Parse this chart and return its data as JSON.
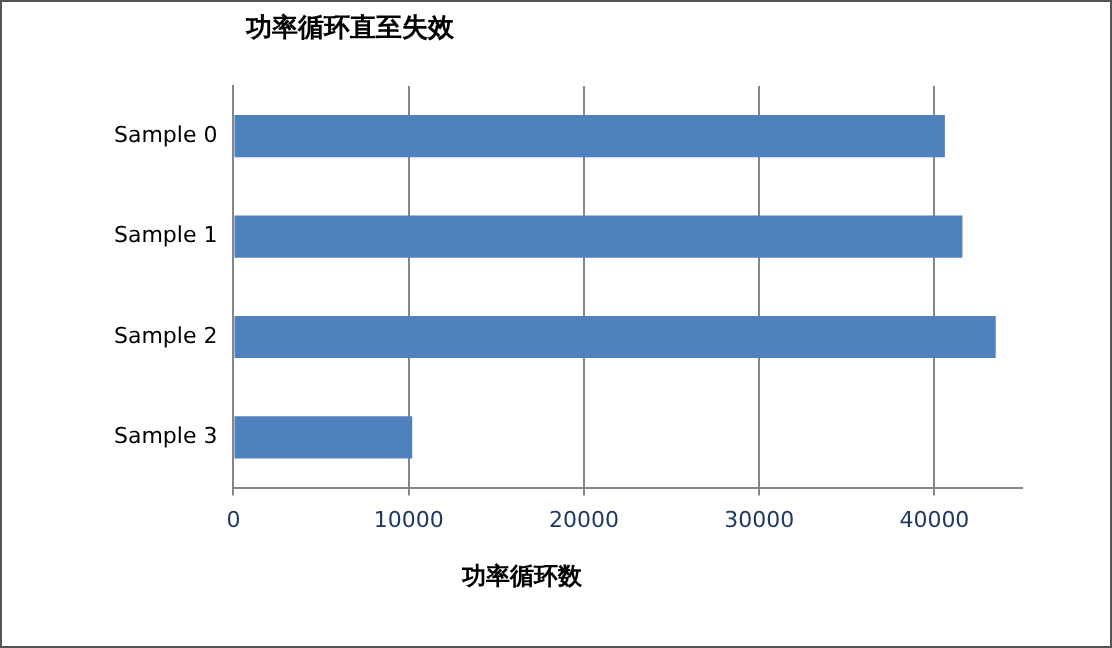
{
  "chart_data": {
    "type": "bar",
    "orientation": "horizontal",
    "title": "功率循环直至失效",
    "xlabel": "功率循环数",
    "categories": [
      "Sample 0",
      "Sample 1",
      "Sample 2",
      "Sample 3"
    ],
    "values": [
      40600,
      41600,
      43500,
      10200
    ],
    "color": "#4f81bd",
    "xlim": [
      0,
      45000
    ],
    "xticks": [
      0,
      10000,
      20000,
      30000,
      40000
    ],
    "grid": "x",
    "legend": false
  }
}
